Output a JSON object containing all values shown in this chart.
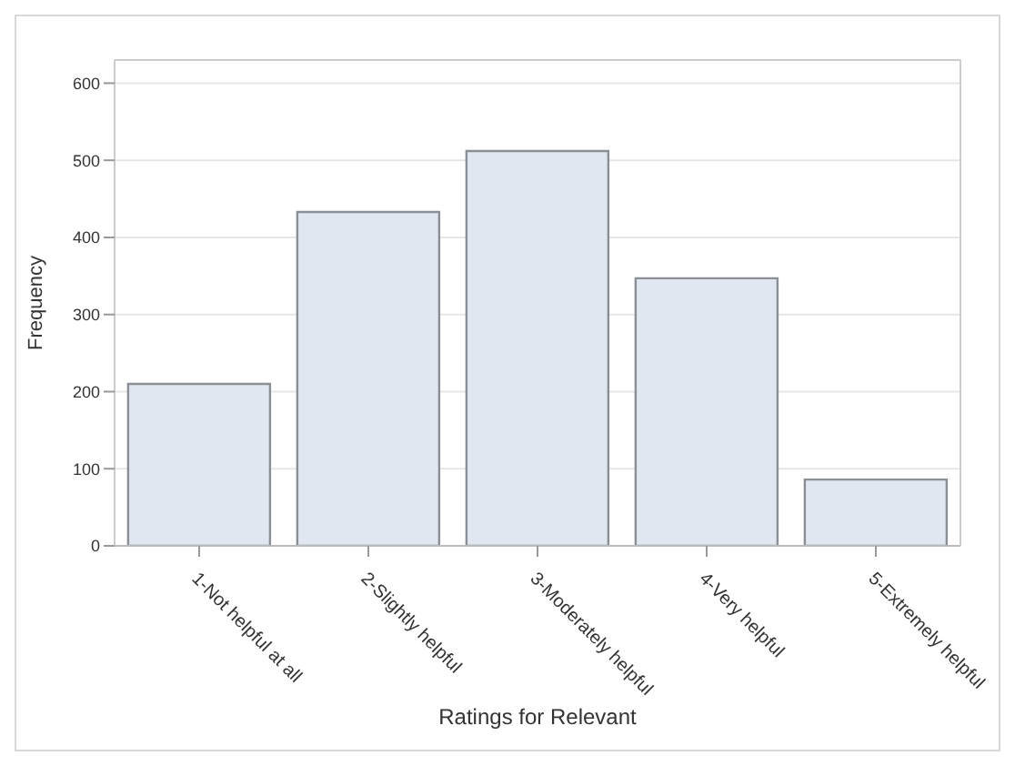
{
  "chart_data": {
    "type": "bar",
    "xlabel": "Ratings for Relevant",
    "ylabel": "Frequency",
    "categories": [
      "1-Not helpful at all",
      "2-Slightly helpful",
      "3-Moderately helpful",
      "4-Very helpful",
      "5-Extremely helpful"
    ],
    "values": [
      210,
      433,
      512,
      347,
      86
    ],
    "color": "#e1e7f0",
    "ylim": [
      0,
      630
    ],
    "yticks": [
      0,
      100,
      200,
      300,
      400,
      500,
      600
    ],
    "grid": "y"
  }
}
